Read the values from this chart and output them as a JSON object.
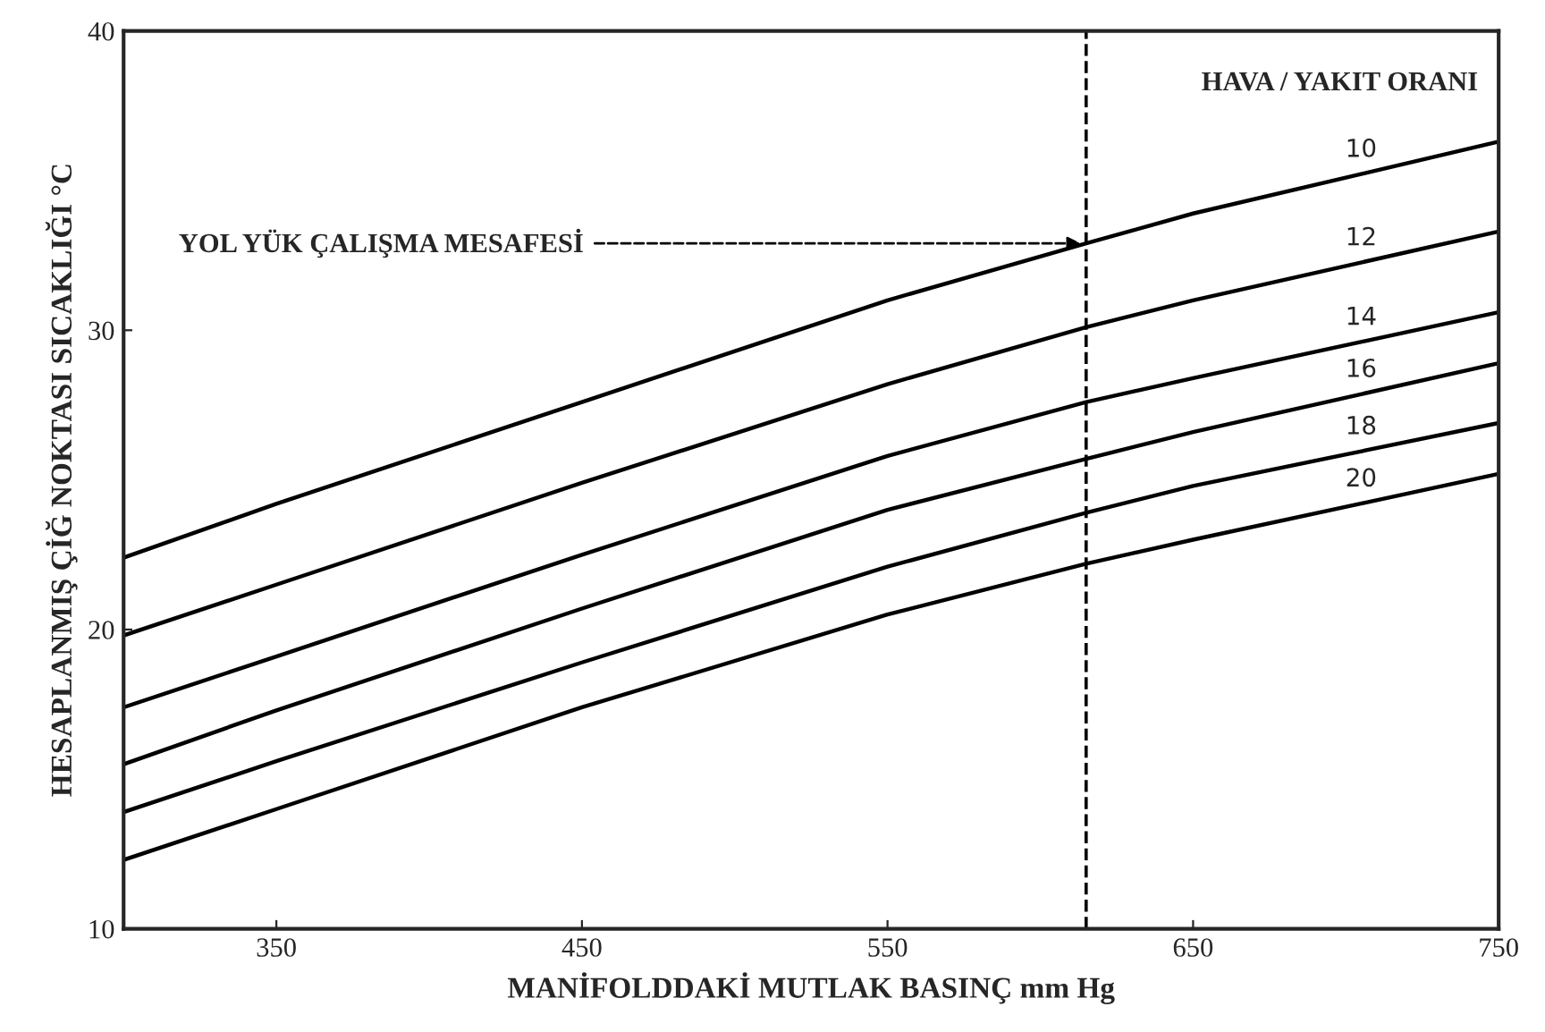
{
  "chart_data": {
    "type": "line",
    "xlabel": "MANİFOLDDAKİ MUTLAK BASINÇ mm Hg",
    "ylabel": "HESAPLANMIŞ ÇİĞ NOKTASI SICAKLIĞI °C",
    "legend_title": "HAVA / YAKIT ORANI",
    "x": [
      300,
      350,
      450,
      550,
      615,
      650,
      750
    ],
    "series": [
      {
        "name": "10",
        "color": "#000000",
        "values": [
          22.4,
          24.2,
          27.6,
          31.0,
          32.9,
          33.9,
          36.3
        ]
      },
      {
        "name": "12",
        "color": "#000000",
        "values": [
          19.8,
          21.5,
          24.9,
          28.2,
          30.1,
          31.0,
          33.3
        ]
      },
      {
        "name": "14",
        "color": "#000000",
        "values": [
          17.4,
          19.1,
          22.5,
          25.8,
          27.6,
          28.4,
          30.6
        ]
      },
      {
        "name": "16",
        "color": "#000000",
        "values": [
          15.5,
          17.3,
          20.7,
          24.0,
          25.7,
          26.6,
          28.9
        ]
      },
      {
        "name": "18",
        "color": "#000000",
        "values": [
          13.9,
          15.6,
          18.9,
          22.1,
          23.9,
          24.8,
          26.9
        ]
      },
      {
        "name": "20",
        "color": "#000000",
        "values": [
          12.3,
          14.0,
          17.4,
          20.5,
          22.2,
          23.0,
          25.2
        ]
      }
    ],
    "annotations": [
      {
        "text": "YOL YÜK ÇALIŞMA MESAFESİ",
        "x": 615,
        "y": 32.9
      }
    ],
    "ref_lines": [
      {
        "axis": "x",
        "value": 615,
        "line_style": "dashed",
        "color": "#000000"
      }
    ],
    "xlim": [
      300,
      750
    ],
    "ylim": [
      10,
      40
    ],
    "xticks": [
      350,
      450,
      550,
      650,
      750
    ],
    "yticks": [
      10,
      20,
      30,
      40
    ],
    "grid": false,
    "legend": false,
    "marker": "none",
    "line_style": "solid"
  }
}
